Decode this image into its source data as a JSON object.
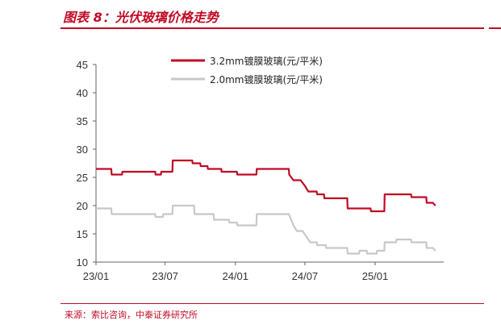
{
  "figure": {
    "title": "图表 8：光伏玻璃价格走势",
    "source": "来源：索比咨询，中泰证券研究所"
  },
  "colors": {
    "accent": "#c00a24",
    "series_primary": "#c00a24",
    "series_secondary": "#c8c8c8"
  },
  "chart_data": {
    "type": "line",
    "title": "",
    "xlabel": "",
    "ylabel": "",
    "ylim": [
      10,
      45
    ],
    "yticks": [
      "10",
      "15",
      "20",
      "25",
      "30",
      "35",
      "40",
      "45"
    ],
    "xtick_labels": [
      "23/01",
      "23/07",
      "24/01",
      "24/07",
      "25/01"
    ],
    "xlim": [
      "2023-01",
      "2025-06"
    ],
    "grid": false,
    "legend_position": "top",
    "series": [
      {
        "name": "3.2mm镀膜玻璃(元/平米)",
        "color": "#c00a24",
        "points": [
          [
            "2023-01-01",
            26.5
          ],
          [
            "2023-02-10",
            26.5
          ],
          [
            "2023-02-11",
            25.5
          ],
          [
            "2023-03-10",
            25.5
          ],
          [
            "2023-03-11",
            26.0
          ],
          [
            "2023-06-05",
            26.0
          ],
          [
            "2023-06-06",
            25.5
          ],
          [
            "2023-06-20",
            25.5
          ],
          [
            "2023-06-21",
            26.0
          ],
          [
            "2023-07-20",
            26.0
          ],
          [
            "2023-07-21",
            28.0
          ],
          [
            "2023-09-10",
            28.0
          ],
          [
            "2023-09-11",
            27.5
          ],
          [
            "2023-10-01",
            27.5
          ],
          [
            "2023-10-02",
            27.0
          ],
          [
            "2023-10-20",
            27.0
          ],
          [
            "2023-10-21",
            26.5
          ],
          [
            "2023-11-25",
            26.5
          ],
          [
            "2023-11-26",
            26.0
          ],
          [
            "2024-01-05",
            26.0
          ],
          [
            "2024-01-06",
            25.5
          ],
          [
            "2024-02-25",
            25.5
          ],
          [
            "2024-02-26",
            26.5
          ],
          [
            "2024-05-20",
            26.5
          ],
          [
            "2024-05-21",
            25.5
          ],
          [
            "2024-06-01",
            24.5
          ],
          [
            "2024-06-20",
            24.5
          ],
          [
            "2024-07-01",
            23.5
          ],
          [
            "2024-07-10",
            22.5
          ],
          [
            "2024-08-01",
            22.5
          ],
          [
            "2024-08-02",
            22.0
          ],
          [
            "2024-08-20",
            22.0
          ],
          [
            "2024-08-21",
            21.3
          ],
          [
            "2024-10-20",
            21.3
          ],
          [
            "2024-10-21",
            19.5
          ],
          [
            "2024-12-20",
            19.5
          ],
          [
            "2024-12-21",
            19.0
          ],
          [
            "2025-01-25",
            19.0
          ],
          [
            "2025-01-26",
            22.0
          ],
          [
            "2025-04-05",
            22.0
          ],
          [
            "2025-04-06",
            21.5
          ],
          [
            "2025-05-15",
            21.5
          ],
          [
            "2025-05-16",
            20.5
          ],
          [
            "2025-06-01",
            20.5
          ],
          [
            "2025-06-08",
            20.0
          ]
        ]
      },
      {
        "name": "2.0mm镀膜玻璃(元/平米)",
        "color": "#c8c8c8",
        "points": [
          [
            "2023-01-01",
            19.5
          ],
          [
            "2023-02-10",
            19.5
          ],
          [
            "2023-02-11",
            18.5
          ],
          [
            "2023-06-05",
            18.5
          ],
          [
            "2023-06-06",
            18.0
          ],
          [
            "2023-06-25",
            18.0
          ],
          [
            "2023-06-26",
            18.5
          ],
          [
            "2023-07-20",
            18.5
          ],
          [
            "2023-07-21",
            20.0
          ],
          [
            "2023-09-15",
            20.0
          ],
          [
            "2023-09-16",
            18.5
          ],
          [
            "2023-11-05",
            18.5
          ],
          [
            "2023-11-06",
            17.5
          ],
          [
            "2023-12-15",
            17.5
          ],
          [
            "2023-12-16",
            17.0
          ],
          [
            "2024-01-05",
            17.0
          ],
          [
            "2024-01-06",
            16.5
          ],
          [
            "2024-02-25",
            16.5
          ],
          [
            "2024-02-26",
            18.5
          ],
          [
            "2024-05-20",
            18.5
          ],
          [
            "2024-06-01",
            16.5
          ],
          [
            "2024-06-10",
            15.5
          ],
          [
            "2024-06-25",
            15.5
          ],
          [
            "2024-07-05",
            14.5
          ],
          [
            "2024-07-15",
            13.5
          ],
          [
            "2024-08-01",
            13.5
          ],
          [
            "2024-08-02",
            13.0
          ],
          [
            "2024-08-25",
            13.0
          ],
          [
            "2024-08-26",
            12.5
          ],
          [
            "2024-10-20",
            12.5
          ],
          [
            "2024-10-21",
            11.5
          ],
          [
            "2024-11-20",
            11.5
          ],
          [
            "2024-11-21",
            12.0
          ],
          [
            "2024-12-10",
            12.0
          ],
          [
            "2024-12-11",
            11.5
          ],
          [
            "2025-01-05",
            11.5
          ],
          [
            "2025-01-06",
            12.0
          ],
          [
            "2025-01-25",
            12.0
          ],
          [
            "2025-01-26",
            13.5
          ],
          [
            "2025-02-25",
            13.5
          ],
          [
            "2025-02-26",
            14.0
          ],
          [
            "2025-04-05",
            14.0
          ],
          [
            "2025-04-06",
            13.5
          ],
          [
            "2025-05-15",
            13.5
          ],
          [
            "2025-05-16",
            12.5
          ],
          [
            "2025-06-01",
            12.5
          ],
          [
            "2025-06-08",
            12.0
          ]
        ]
      }
    ]
  }
}
